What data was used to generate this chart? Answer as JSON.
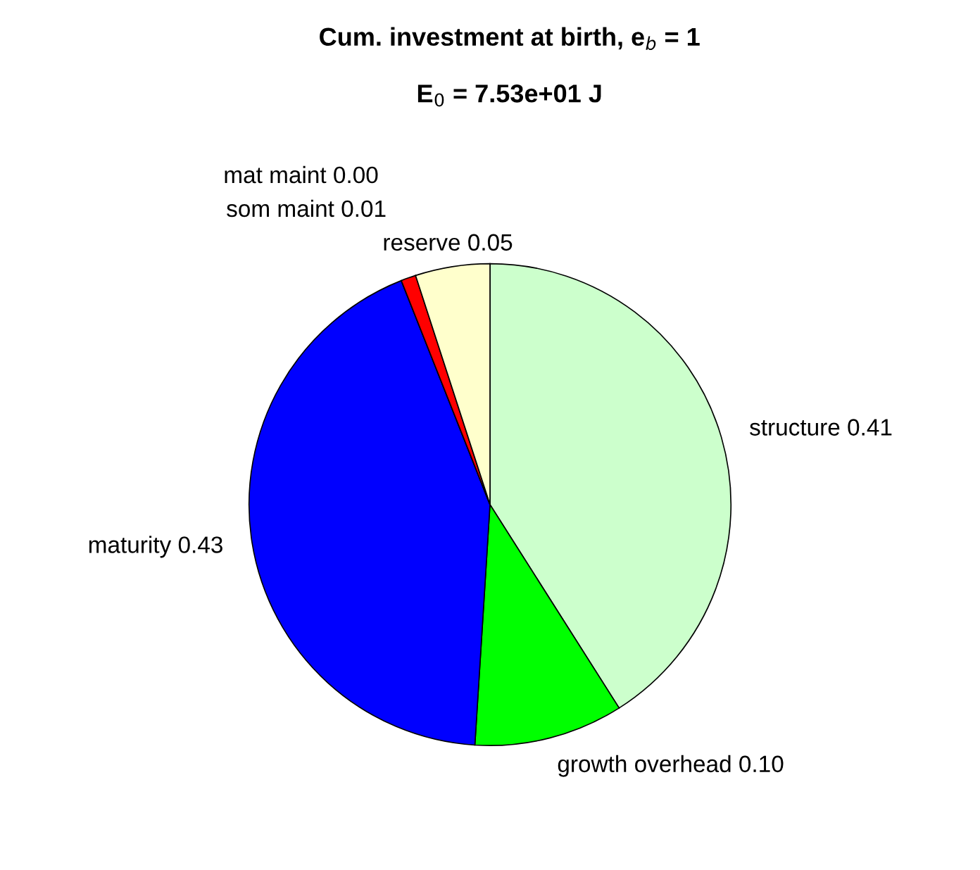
{
  "chart_data": {
    "type": "pie",
    "title": "Cum. investment at birth, e$_{b}$ = 1",
    "subtitle": "E$_{0}$ = 7.53e+01 J",
    "categories": [
      "structure 0.41",
      "growth overhead 0.10",
      "maturity 0.43",
      "mat maint 0.00",
      "som maint 0.01",
      "reserve 0.05"
    ],
    "values": [
      0.41,
      0.1,
      0.43,
      0.0,
      0.01,
      0.05
    ],
    "colors": [
      "#ccffcc",
      "#00ff00",
      "#0000ff",
      "#cc00cc",
      "#ff0000",
      "#ffffcc"
    ],
    "legend": false
  }
}
